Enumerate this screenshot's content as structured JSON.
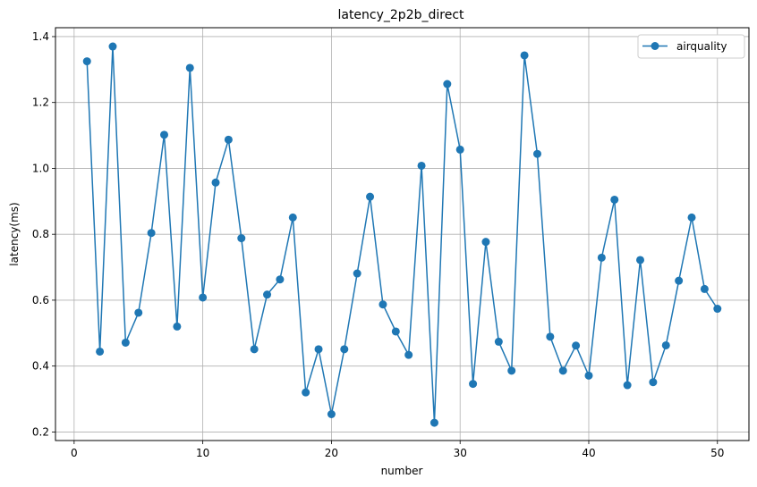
{
  "chart_data": {
    "type": "line",
    "title": "latency_2p2b_direct",
    "xlabel": "number",
    "ylabel": "latency(ms)",
    "xlim": [
      -1.45,
      52.45
    ],
    "ylim": [
      0.174,
      1.427
    ],
    "xticks": [
      0,
      10,
      20,
      30,
      40,
      50
    ],
    "yticks": [
      0.2,
      0.4,
      0.6,
      0.8,
      1.0,
      1.2,
      1.4
    ],
    "xtick_labels": [
      "0",
      "10",
      "20",
      "30",
      "40",
      "50"
    ],
    "ytick_labels": [
      "0.2",
      "0.4",
      "0.6",
      "0.8",
      "1.0",
      "1.2",
      "1.4"
    ],
    "grid": true,
    "legend_position": "top-right",
    "series": [
      {
        "name": "airquality",
        "color": "#1f77b4",
        "marker": "circle",
        "x": [
          1,
          2,
          3,
          4,
          5,
          6,
          7,
          8,
          9,
          10,
          11,
          12,
          13,
          14,
          15,
          16,
          17,
          18,
          19,
          20,
          21,
          22,
          23,
          24,
          25,
          26,
          27,
          28,
          29,
          30,
          31,
          32,
          33,
          34,
          35,
          36,
          37,
          38,
          39,
          40,
          41,
          42,
          43,
          44,
          45,
          46,
          47,
          48,
          49,
          50
        ],
        "y": [
          1.325,
          0.444,
          1.37,
          0.471,
          0.562,
          0.804,
          1.102,
          0.52,
          1.305,
          0.608,
          0.957,
          1.087,
          0.788,
          0.451,
          0.617,
          0.663,
          0.851,
          0.32,
          0.451,
          0.254,
          0.451,
          0.681,
          0.914,
          0.587,
          0.505,
          0.434,
          1.008,
          0.228,
          1.256,
          1.057,
          0.346,
          0.777,
          0.474,
          0.386,
          1.343,
          1.044,
          0.489,
          0.386,
          0.462,
          0.371,
          0.729,
          0.905,
          0.342,
          0.722,
          0.351,
          0.463,
          0.659,
          0.851,
          0.634,
          0.574
        ]
      }
    ]
  }
}
